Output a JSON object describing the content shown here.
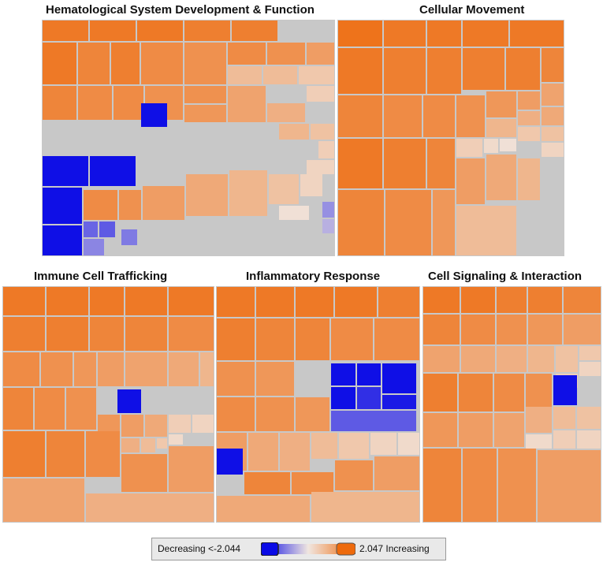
{
  "colors": {
    "increasing": "#ee6a0c",
    "decreasing": "#0a0ae6",
    "mid": "#f0e6e0",
    "border": "#c8c8c8"
  },
  "legend": {
    "low_label": "Decreasing <-2.044",
    "high_label": "2.047 Increasing",
    "min": -2.044,
    "max": 2.047
  },
  "chart_data": [
    {
      "type": "heatmap",
      "title": "Hematological System Development & Function",
      "tile_values": [
        1.8,
        1.8,
        1.8,
        1.7,
        1.7,
        1.8,
        1.6,
        1.7,
        1.5,
        1.4,
        1.5,
        1.4,
        1.2,
        0.7,
        0.7,
        0.5,
        0.4,
        1.6,
        1.5,
        1.5,
        1.4,
        1.4,
        1.3,
        1.1,
        0.9,
        0.8,
        0.6,
        0.4,
        0.3,
        -2.0,
        -2.0,
        -2.0,
        -2.0,
        -2.0,
        -1.2,
        -1.3,
        -1.0,
        -0.9,
        -0.5,
        1.5,
        1.4,
        1.2,
        1.0,
        0.8,
        0.6,
        0.3,
        0.1,
        -0.8
      ]
    },
    {
      "type": "heatmap",
      "title": "Cellular Movement",
      "tile_values": [
        1.9,
        1.8,
        1.8,
        1.8,
        1.8,
        1.8,
        1.7,
        1.7,
        1.7,
        1.7,
        1.6,
        1.6,
        1.5,
        1.5,
        1.4,
        1.3,
        1.2,
        1.1,
        1.0,
        0.9,
        0.8,
        0.6,
        0.5,
        0.4,
        0.3,
        0.2,
        0.1,
        1.8,
        1.7,
        1.6,
        1.6,
        1.5,
        1.3,
        1.2,
        1.0,
        0.8,
        0.7
      ]
    },
    {
      "type": "heatmap",
      "title": "Immune Cell Trafficking",
      "tile_values": [
        1.8,
        1.8,
        1.8,
        1.8,
        1.8,
        1.7,
        1.7,
        1.6,
        1.6,
        1.5,
        1.5,
        1.4,
        1.3,
        1.2,
        1.1,
        1.0,
        0.8,
        -2.0,
        1.6,
        1.5,
        1.4,
        1.3,
        1.2,
        1.0,
        0.9,
        0.7,
        0.5,
        0.4,
        0.3,
        0.2,
        1.7,
        1.6,
        1.5,
        1.4,
        1.2,
        1.1,
        0.9
      ]
    },
    {
      "type": "heatmap",
      "title": "Inflammatory Response",
      "tile_values": [
        1.8,
        1.8,
        1.8,
        1.8,
        1.7,
        1.7,
        1.6,
        1.6,
        1.5,
        1.5,
        1.4,
        1.3,
        -2.0,
        -2.0,
        -2.0,
        -2.0,
        -1.7,
        -1.9,
        -1.3,
        1.5,
        1.4,
        1.3,
        1.2,
        1.0,
        0.9,
        0.7,
        0.5,
        0.3,
        0.2,
        -2.0,
        1.6,
        1.5,
        1.4,
        1.2,
        1.0,
        0.8
      ]
    },
    {
      "type": "heatmap",
      "title": "Cell Signaling & Interaction",
      "tile_values": [
        1.8,
        1.8,
        1.7,
        1.7,
        1.6,
        1.6,
        1.5,
        1.4,
        1.3,
        1.2,
        1.1,
        1.0,
        0.9,
        0.8,
        0.6,
        0.5,
        0.4,
        0.3,
        -2.0,
        1.7,
        1.6,
        1.5,
        1.4,
        1.3,
        1.2,
        1.1,
        0.9,
        0.7,
        0.6,
        0.4,
        0.3,
        0.2,
        0.1,
        1.6,
        1.5,
        1.4,
        1.2
      ]
    }
  ]
}
